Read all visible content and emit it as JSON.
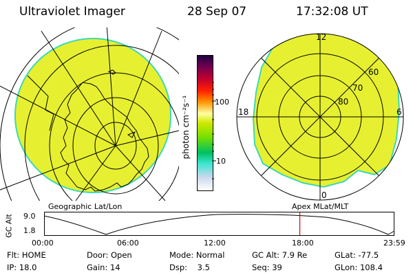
{
  "header": {
    "instrument": "Ultraviolet Imager",
    "date": "28 Sep 07",
    "time": "17:32:08 UT"
  },
  "panels": {
    "left_label": "Geographic Lat/Lon",
    "right_label": "Apex MLat/MLT"
  },
  "right_map": {
    "mlt_labels": [
      "12",
      "18",
      "6",
      "0"
    ],
    "mlat_labels": [
      "60",
      "70",
      "80"
    ]
  },
  "colorbar": {
    "unit_label": "photon cm⁻²s⁻¹",
    "ticks": [
      "100",
      "10"
    ],
    "colors": [
      "#ffffff",
      "#c8d8ec",
      "#3ae6d0",
      "#00c060",
      "#7ae000",
      "#d0e800",
      "#ffffa0",
      "#ff9000",
      "#ff2000",
      "#c00030",
      "#700050",
      "#200040"
    ]
  },
  "altitude_plot": {
    "ylabel": "GC Alt",
    "yticks": [
      "9.0",
      "1.8"
    ],
    "xticks": [
      "00:00",
      "06:00",
      "12:00",
      "18:00",
      "23:59"
    ],
    "current_time_hours": 17.53
  },
  "info": {
    "row1": [
      {
        "label": "Flt:",
        "value": "HOME"
      },
      {
        "label": "Door:",
        "value": "Open"
      },
      {
        "label": "Mode:",
        "value": "Normal"
      },
      {
        "label": "GC Alt:",
        "value": "7.9 Re"
      },
      {
        "label": "GLat:",
        "value": "-77.5"
      }
    ],
    "row2": [
      {
        "label": "IP:",
        "value": "18.0"
      },
      {
        "label": "Gain:",
        "value": "14"
      },
      {
        "label": "Dsp:",
        "value": "3.5"
      },
      {
        "label": "Seq:",
        "value": "39"
      },
      {
        "label": "GLon:",
        "value": "108.4"
      }
    ]
  },
  "colors": {
    "aurora_fill": "#e6f030",
    "aurora_edge": "#3ad8b8",
    "grid": "#000000",
    "time_marker": "#e00000"
  }
}
